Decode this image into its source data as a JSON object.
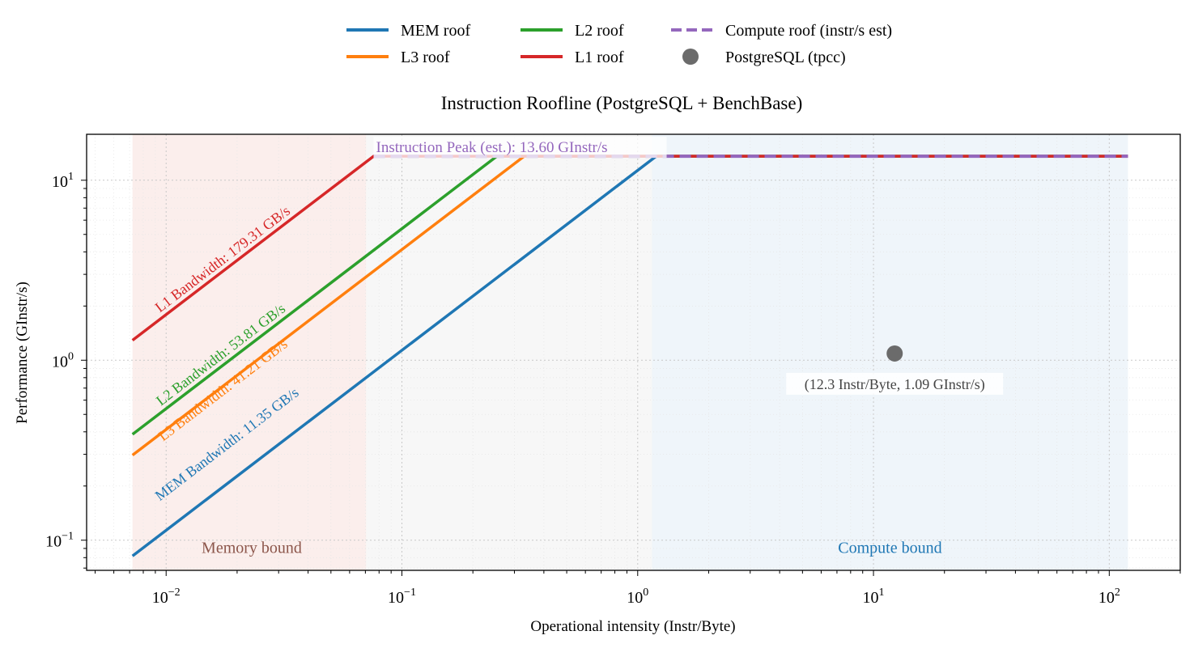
{
  "chart_data": {
    "type": "line",
    "title": "Instruction Roofline (PostgreSQL + BenchBase)",
    "xlabel": "Operational intensity (Instr/Byte)",
    "ylabel": "Performance (GInstr/s)",
    "x_scale": "log",
    "y_scale": "log",
    "xlim": [
      0.0046,
      200
    ],
    "ylim": [
      0.068,
      18
    ],
    "grid": true,
    "legend_position": "top-center",
    "x_ticks": [
      {
        "value": 0.01,
        "base": "10",
        "exp": "−2"
      },
      {
        "value": 0.1,
        "base": "10",
        "exp": "−1"
      },
      {
        "value": 1,
        "base": "10",
        "exp": "0"
      },
      {
        "value": 10,
        "base": "10",
        "exp": "1"
      },
      {
        "value": 100,
        "base": "10",
        "exp": "2"
      }
    ],
    "y_ticks": [
      {
        "value": 0.1,
        "base": "10",
        "exp": "−1"
      },
      {
        "value": 1,
        "base": "10",
        "exp": "0"
      },
      {
        "value": 10,
        "base": "10",
        "exp": "1"
      }
    ],
    "regions": [
      {
        "label": "Memory bound",
        "x_start": 0.0072,
        "x_end": 0.0705,
        "color": "#f7d9d5",
        "text_color": "#8c564b"
      },
      {
        "label": "",
        "x_start": 0.0705,
        "x_end": 1.15,
        "color": "#eeeeee",
        "text_color": ""
      },
      {
        "label": "Compute bound",
        "x_start": 1.15,
        "x_end": 120,
        "color": "#dce8f4",
        "text_color": "#1f77b4"
      }
    ],
    "x_range": [
      0.0072,
      120
    ],
    "compute_peak": {
      "name": "Compute roof (instr/s est)",
      "value": 13.6,
      "annotation": "Instruction Peak (est.): 13.60 GInstr/s",
      "color": "#9467bd"
    },
    "series": [
      {
        "name": "MEM roof",
        "bandwidth": 11.35,
        "annotation": "MEM Bandwidth: 11.35 GB/s",
        "color": "#1f77b4"
      },
      {
        "name": "L3 roof",
        "bandwidth": 41.21,
        "annotation": "L3 Bandwidth: 41.21 GB/s",
        "color": "#ff7f0e"
      },
      {
        "name": "L2 roof",
        "bandwidth": 53.81,
        "annotation": "L2 Bandwidth: 53.81 GB/s",
        "color": "#2ca02c"
      },
      {
        "name": "L1 roof",
        "bandwidth": 179.31,
        "annotation": "L1 Bandwidth: 179.31 GB/s",
        "color": "#d62728"
      }
    ],
    "points": [
      {
        "name": "PostgreSQL (tpcc)",
        "x": 12.3,
        "y": 1.09,
        "annotation": "(12.3 Instr/Byte, 1.09 GInstr/s)",
        "color": "#6b6b6b"
      }
    ],
    "legend": [
      {
        "label": "MEM roof",
        "kind": "line",
        "color": "#1f77b4"
      },
      {
        "label": "L3 roof",
        "kind": "line",
        "color": "#ff7f0e"
      },
      {
        "label": "L2 roof",
        "kind": "line",
        "color": "#2ca02c"
      },
      {
        "label": "L1 roof",
        "kind": "line",
        "color": "#d62728"
      },
      {
        "label": "Compute roof (instr/s est)",
        "kind": "dashed",
        "color": "#9467bd"
      },
      {
        "label": "PostgreSQL (tpcc)",
        "kind": "marker",
        "color": "#6b6b6b"
      }
    ]
  }
}
